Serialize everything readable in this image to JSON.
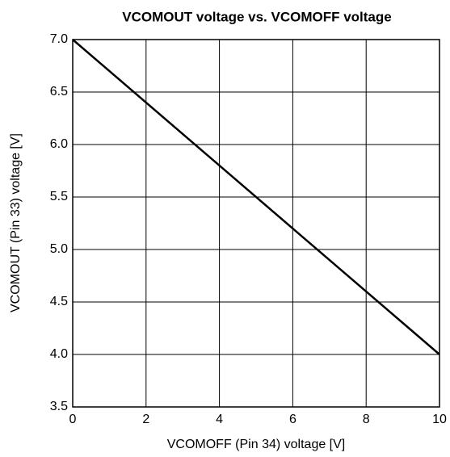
{
  "chart_data": {
    "type": "line",
    "title": "VCOMOUT voltage vs. VCOMOFF voltage",
    "x_label": "VCOMOFF (Pin 34) voltage [V]",
    "y_label": "VCOMOUT (Pin 33) voltage [V]",
    "x": [
      0,
      10
    ],
    "series": [
      {
        "color": "#000000",
        "values": [
          7,
          4
        ]
      }
    ],
    "xlim": [
      0,
      10
    ],
    "xticks": [
      0,
      2,
      4,
      6,
      8,
      10
    ],
    "ylim": [
      3.5,
      7
    ],
    "yticks": [
      3.5,
      {
        "value": 4,
        "label": "4.0"
      },
      4.5,
      {
        "value": 5,
        "label": "5.0"
      },
      5.5,
      {
        "value": 6,
        "label": "6.0"
      },
      6.5,
      {
        "value": 7,
        "label": "7.0"
      }
    ],
    "grid": true
  }
}
